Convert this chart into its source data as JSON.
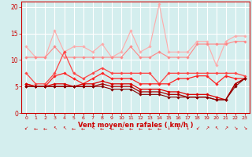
{
  "x": [
    0,
    1,
    2,
    3,
    4,
    5,
    6,
    7,
    8,
    9,
    10,
    11,
    12,
    13,
    14,
    15,
    16,
    17,
    18,
    19,
    20,
    21,
    22,
    23
  ],
  "series": [
    {
      "color": "#ffaaaa",
      "linewidth": 0.8,
      "markersize": 1.8,
      "values": [
        12.5,
        10.5,
        10.5,
        15.5,
        11.5,
        12.5,
        12.5,
        11.5,
        13.0,
        10.5,
        11.5,
        15.5,
        11.5,
        12.5,
        20.5,
        11.5,
        11.5,
        11.5,
        13.5,
        13.5,
        9.0,
        13.5,
        14.5,
        14.5
      ]
    },
    {
      "color": "#ff8888",
      "linewidth": 0.8,
      "markersize": 1.8,
      "values": [
        10.5,
        10.5,
        10.5,
        12.5,
        10.5,
        10.5,
        10.5,
        10.5,
        10.5,
        10.5,
        10.5,
        12.5,
        10.5,
        10.5,
        11.5,
        10.5,
        10.5,
        10.5,
        13.0,
        13.0,
        13.0,
        13.0,
        13.5,
        13.5
      ]
    },
    {
      "color": "#ff4444",
      "linewidth": 0.9,
      "markersize": 1.8,
      "values": [
        7.5,
        5.5,
        5.5,
        7.5,
        11.5,
        7.5,
        6.5,
        7.5,
        8.5,
        7.5,
        7.5,
        7.5,
        7.5,
        7.5,
        5.5,
        7.5,
        7.5,
        7.5,
        7.5,
        7.5,
        7.5,
        7.5,
        7.5,
        7.0
      ]
    },
    {
      "color": "#ff2222",
      "linewidth": 0.9,
      "markersize": 1.8,
      "values": [
        5.5,
        5.0,
        5.0,
        7.0,
        7.5,
        6.5,
        5.5,
        6.5,
        7.5,
        6.5,
        6.5,
        6.5,
        5.5,
        5.5,
        5.5,
        5.5,
        6.5,
        6.5,
        7.0,
        7.0,
        5.5,
        7.0,
        6.5,
        6.5
      ]
    },
    {
      "color": "#dd0000",
      "linewidth": 0.9,
      "markersize": 1.8,
      "values": [
        5.5,
        5.0,
        5.0,
        5.5,
        5.5,
        5.0,
        5.5,
        5.5,
        6.0,
        5.5,
        5.5,
        5.5,
        4.5,
        4.5,
        4.5,
        4.0,
        4.0,
        3.5,
        3.5,
        3.5,
        3.0,
        2.5,
        5.5,
        6.5
      ]
    },
    {
      "color": "#aa0000",
      "linewidth": 0.9,
      "markersize": 1.8,
      "values": [
        5.0,
        5.0,
        5.0,
        5.0,
        5.0,
        5.0,
        5.0,
        5.0,
        5.5,
        5.0,
        5.0,
        5.0,
        4.0,
        4.0,
        4.0,
        3.5,
        3.5,
        3.0,
        3.0,
        3.0,
        2.5,
        2.5,
        5.5,
        6.5
      ]
    },
    {
      "color": "#880000",
      "linewidth": 0.8,
      "markersize": 1.8,
      "values": [
        5.0,
        5.0,
        5.0,
        5.0,
        5.0,
        5.0,
        5.0,
        5.0,
        5.0,
        4.5,
        4.5,
        4.5,
        3.5,
        3.5,
        3.5,
        3.0,
        3.0,
        3.0,
        3.0,
        3.0,
        2.5,
        2.5,
        5.0,
        6.5
      ]
    }
  ],
  "xlim": [
    -0.5,
    23.5
  ],
  "ylim": [
    0,
    21
  ],
  "yticks": [
    0,
    5,
    10,
    15,
    20
  ],
  "xticks": [
    0,
    1,
    2,
    3,
    4,
    5,
    6,
    7,
    8,
    9,
    10,
    11,
    12,
    13,
    14,
    15,
    16,
    17,
    18,
    19,
    20,
    21,
    22,
    23
  ],
  "xlabel": "Vent moyen/en rafales ( km/h )",
  "background_color": "#d4eeee",
  "grid_color": "#ffffff",
  "tick_color": "#cc0000",
  "label_color": "#cc0000",
  "wind_arrows": [
    "↙",
    "←",
    "←",
    "↖",
    "↖",
    "←",
    "←",
    "↖",
    "←",
    "←",
    "←",
    "←",
    "←",
    "←",
    "←",
    "↓",
    "↓",
    "↓",
    "↙",
    "↗",
    "↖",
    "↗",
    "↘",
    "↘"
  ]
}
